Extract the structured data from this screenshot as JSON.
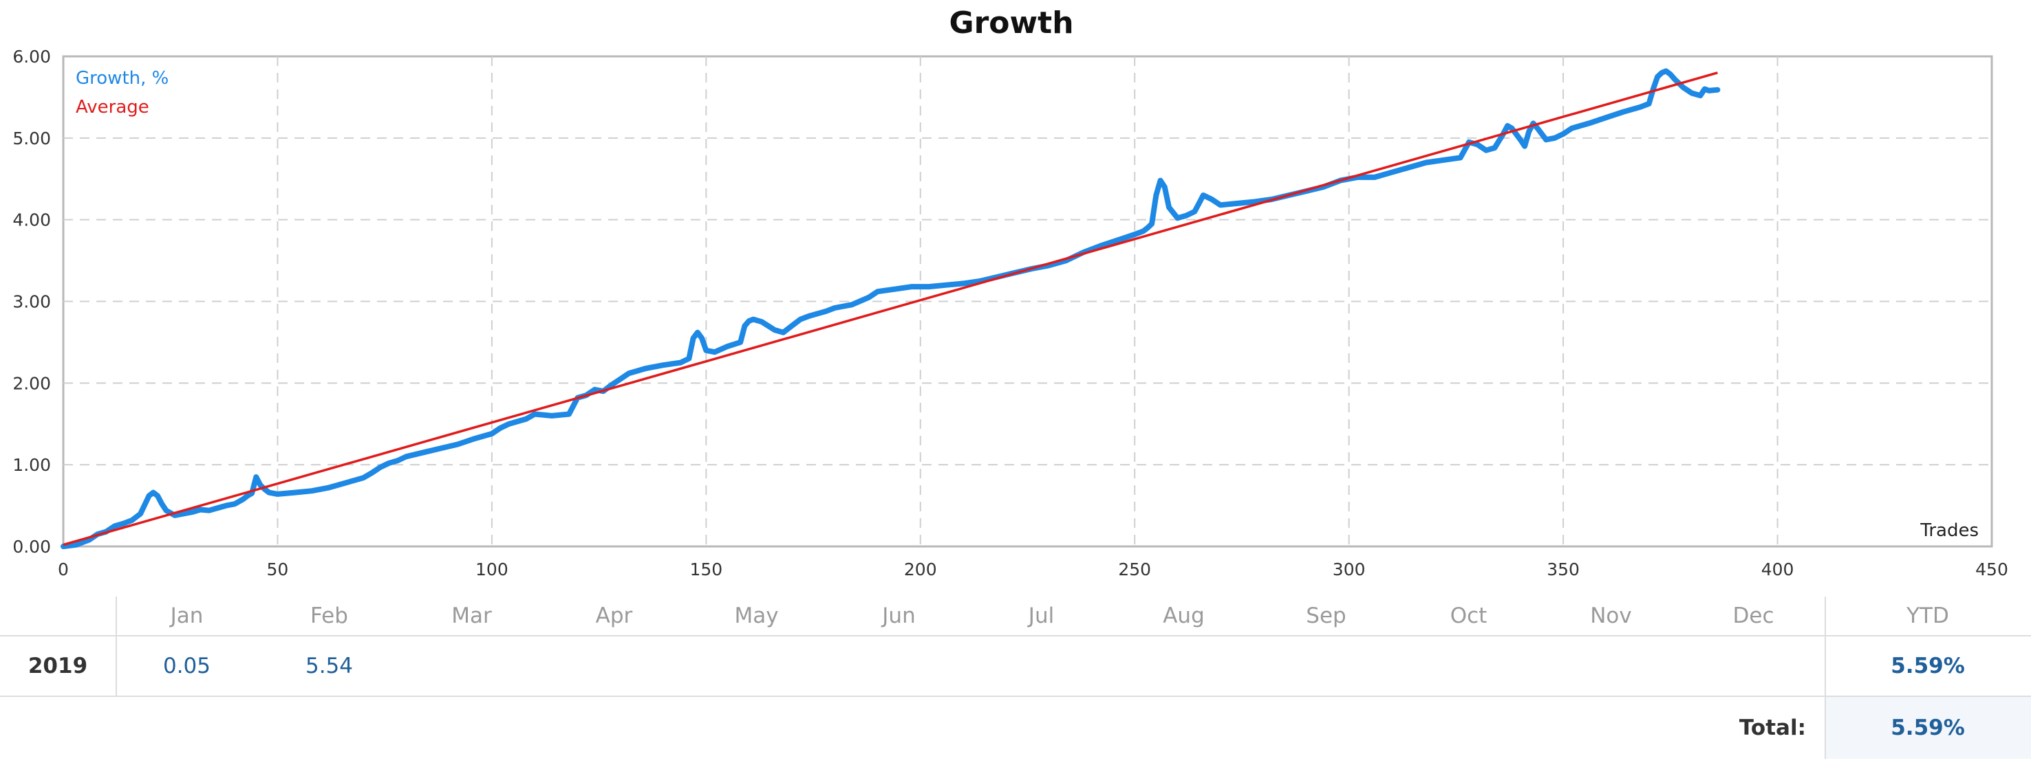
{
  "chart_data": {
    "type": "line",
    "title": "Growth",
    "xlabel": "Trades",
    "ylabel": "",
    "xlim": [
      0,
      450
    ],
    "ylim": [
      0,
      6
    ],
    "x_ticks": [
      "0",
      "50",
      "100",
      "150",
      "200",
      "250",
      "300",
      "350",
      "400",
      "450"
    ],
    "y_ticks": [
      "0.00",
      "1.00",
      "2.00",
      "3.00",
      "4.00",
      "5.00",
      "6.00"
    ],
    "grid": true,
    "legend_position": "top-left",
    "series": [
      {
        "name": "Growth, %",
        "color": "#1e88e5",
        "x": [
          0,
          3,
          6,
          8,
          10,
          12,
          14,
          16,
          18,
          20,
          21,
          22,
          23,
          24,
          26,
          28,
          30,
          32,
          34,
          36,
          38,
          40,
          42,
          43,
          44,
          45,
          46,
          47,
          48,
          50,
          54,
          58,
          62,
          66,
          70,
          72,
          74,
          76,
          78,
          80,
          84,
          88,
          92,
          96,
          100,
          102,
          104,
          108,
          110,
          114,
          118,
          120,
          122,
          124,
          126,
          128,
          130,
          132,
          134,
          136,
          140,
          144,
          146,
          147,
          148,
          149,
          150,
          152,
          155,
          158,
          159,
          160,
          161,
          163,
          166,
          168,
          170,
          172,
          174,
          176,
          178,
          180,
          184,
          188,
          190,
          194,
          198,
          202,
          206,
          210,
          214,
          218,
          222,
          226,
          230,
          234,
          238,
          242,
          246,
          250,
          252,
          253,
          254,
          255,
          256,
          257,
          258,
          260,
          262,
          264,
          265,
          266,
          268,
          270,
          274,
          278,
          282,
          286,
          290,
          294,
          298,
          302,
          306,
          310,
          314,
          318,
          322,
          326,
          328,
          330,
          332,
          334,
          336,
          337,
          338,
          340,
          341,
          342,
          343,
          344,
          346,
          348,
          350,
          352,
          356,
          360,
          364,
          368,
          370,
          371,
          372,
          373,
          374,
          375,
          376,
          378,
          380,
          382,
          383,
          384,
          386
        ],
        "y": [
          0.0,
          0.02,
          0.08,
          0.15,
          0.18,
          0.25,
          0.28,
          0.32,
          0.4,
          0.62,
          0.66,
          0.62,
          0.52,
          0.44,
          0.38,
          0.4,
          0.42,
          0.45,
          0.44,
          0.47,
          0.5,
          0.52,
          0.58,
          0.62,
          0.65,
          0.85,
          0.75,
          0.7,
          0.66,
          0.64,
          0.66,
          0.68,
          0.72,
          0.78,
          0.84,
          0.9,
          0.97,
          1.02,
          1.05,
          1.1,
          1.15,
          1.2,
          1.25,
          1.32,
          1.38,
          1.45,
          1.5,
          1.56,
          1.62,
          1.6,
          1.62,
          1.82,
          1.85,
          1.92,
          1.9,
          1.98,
          2.05,
          2.12,
          2.15,
          2.18,
          2.22,
          2.25,
          2.3,
          2.55,
          2.62,
          2.55,
          2.4,
          2.38,
          2.45,
          2.5,
          2.7,
          2.76,
          2.78,
          2.75,
          2.65,
          2.62,
          2.7,
          2.78,
          2.82,
          2.85,
          2.88,
          2.92,
          2.96,
          3.05,
          3.12,
          3.15,
          3.18,
          3.18,
          3.2,
          3.22,
          3.25,
          3.3,
          3.35,
          3.4,
          3.44,
          3.5,
          3.6,
          3.68,
          3.75,
          3.82,
          3.86,
          3.9,
          3.95,
          4.3,
          4.48,
          4.4,
          4.15,
          4.02,
          4.05,
          4.1,
          4.2,
          4.3,
          4.25,
          4.18,
          4.2,
          4.22,
          4.25,
          4.3,
          4.35,
          4.4,
          4.48,
          4.52,
          4.52,
          4.58,
          4.64,
          4.7,
          4.73,
          4.76,
          4.95,
          4.92,
          4.85,
          4.88,
          5.05,
          5.15,
          5.12,
          4.98,
          4.9,
          5.08,
          5.18,
          5.12,
          4.98,
          5.0,
          5.05,
          5.12,
          5.18,
          5.25,
          5.32,
          5.38,
          5.42,
          5.6,
          5.75,
          5.8,
          5.82,
          5.78,
          5.72,
          5.62,
          5.55,
          5.52,
          5.6,
          5.58,
          5.59
        ]
      },
      {
        "name": "Average",
        "color": "#e01b1b",
        "x": [
          0,
          386
        ],
        "y": [
          0.02,
          5.8
        ]
      }
    ]
  },
  "monthly_table": {
    "headers": {
      "months": [
        "Jan",
        "Feb",
        "Mar",
        "Apr",
        "May",
        "Jun",
        "Jul",
        "Aug",
        "Sep",
        "Oct",
        "Nov",
        "Dec"
      ],
      "ytd": "YTD"
    },
    "row": {
      "year": "2019",
      "values": [
        "0.05",
        "5.54",
        "",
        "",
        "",
        "",
        "",
        "",
        "",
        "",
        "",
        ""
      ],
      "ytd": "5.59%"
    },
    "total": {
      "label": "Total:",
      "value": "5.59%"
    }
  }
}
